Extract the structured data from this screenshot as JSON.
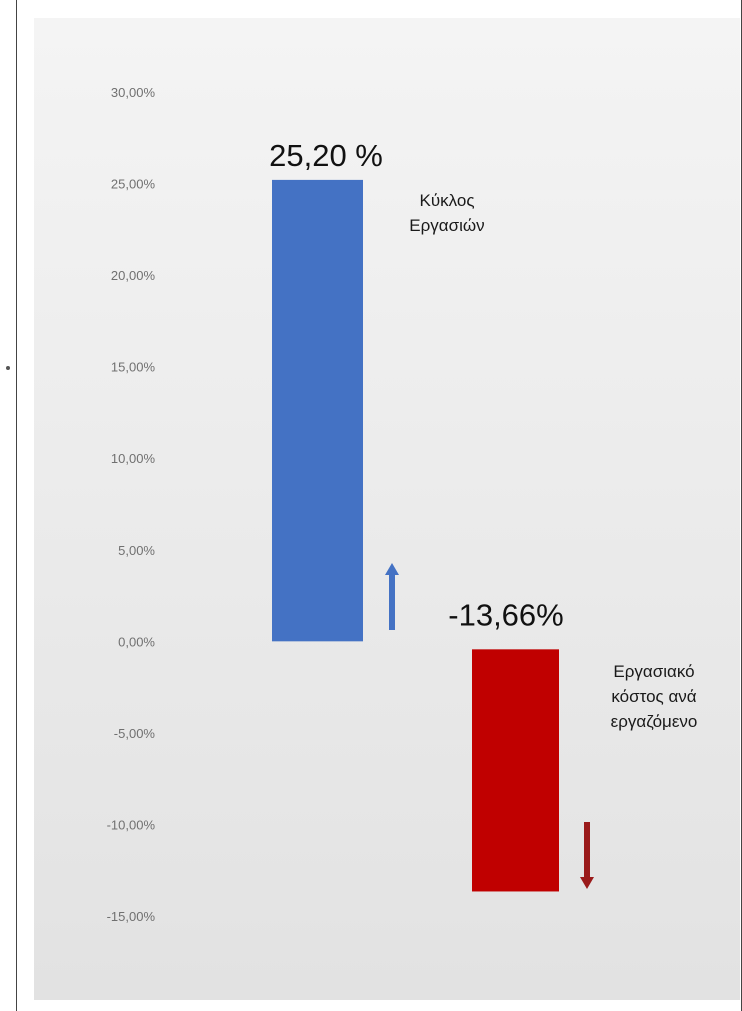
{
  "chart_data": {
    "type": "bar",
    "categories": [
      "Κύκλος Εργασιών",
      "Εργασιακό κόστος ανά εργαζόμενο"
    ],
    "category_lines": [
      [
        "Κύκλος",
        "Εργασιών"
      ],
      [
        "Εργασιακό",
        "κόστος ανά",
        "εργαζόμενο"
      ]
    ],
    "values": [
      25.2,
      -13.66
    ],
    "value_labels": [
      "25,20 %",
      "-13,66%"
    ],
    "bar_colors": [
      "#4472c4",
      "#c00000"
    ],
    "arrow_colors": [
      "#4472c4",
      "#9a1a1a"
    ],
    "arrow_directions": [
      "up",
      "down"
    ],
    "ylim": [
      -15,
      30
    ],
    "yticks": [
      30,
      25,
      20,
      15,
      10,
      5,
      0,
      -5,
      -10,
      -15
    ],
    "ytick_labels": [
      "30,00%",
      "25,00%",
      "20,00%",
      "15,00%",
      "10,00%",
      "5,00%",
      "0,00%",
      "-5,00%",
      "-10,00%",
      "-15,00%"
    ],
    "grid": false,
    "legend": "none"
  }
}
